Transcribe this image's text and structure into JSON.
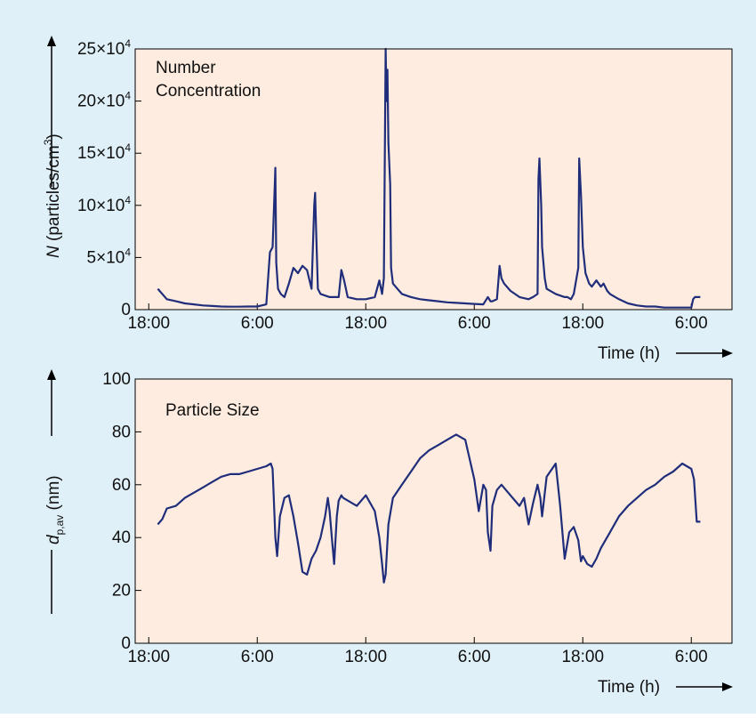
{
  "figure": {
    "background": "#dff0f8",
    "plot_background": "#fdecdf",
    "line_color": "#1f2d7b",
    "time_label": "Time (h)",
    "x_tick_labels": [
      "18:00",
      "6:00",
      "18:00",
      "6:00",
      "18:00",
      "6:00"
    ]
  },
  "chart_data": [
    {
      "type": "line",
      "annotation": "Number Concentration",
      "ylabel": {
        "italic": "N",
        "rest": " (particles/cm",
        "sup": "3",
        "close": ")"
      },
      "xlabel": "Time (h)",
      "x_unit": "hours since first 18:00 tick",
      "xlim": [
        -1.5,
        64.5
      ],
      "ylim": [
        0,
        250000
      ],
      "y_ticks": [
        {
          "value": 0,
          "base": "0",
          "exp": ""
        },
        {
          "value": 50000,
          "base": "5×10",
          "exp": "4"
        },
        {
          "value": 100000,
          "base": "10×10",
          "exp": "4"
        },
        {
          "value": 150000,
          "base": "15×10",
          "exp": "4"
        },
        {
          "value": 200000,
          "base": "20×10",
          "exp": "4"
        },
        {
          "value": 250000,
          "base": "25×10",
          "exp": "4"
        }
      ],
      "x_ticks": [
        0,
        12,
        24,
        36,
        48,
        60
      ],
      "series": [
        {
          "x": [
            1,
            2,
            3,
            4,
            5,
            6,
            7,
            8,
            9,
            10,
            11,
            12,
            13,
            13.4,
            13.7,
            14,
            14.1,
            14.3,
            14.6,
            15,
            15.5,
            16,
            16.5,
            17,
            17.5,
            18,
            18.3,
            18.4,
            18.5,
            18.7,
            19,
            20,
            21,
            21.3,
            21.6,
            22,
            23,
            24,
            25,
            25.5,
            25.8,
            26,
            26.2,
            26.3,
            26.4,
            26.5,
            26.7,
            26.8,
            27,
            27.5,
            28,
            29,
            30,
            31,
            32,
            33,
            34,
            35,
            36,
            37,
            37.5,
            37.8,
            38,
            38.5,
            38.8,
            39,
            39.3,
            40,
            41,
            42,
            42.5,
            43,
            43.1,
            43.2,
            43.4,
            43.5,
            43.8,
            44,
            45,
            46,
            46.3,
            46.7,
            47,
            47.5,
            47.6,
            47.8,
            48,
            48.3,
            48.7,
            49,
            49.5,
            50,
            50.3,
            50.7,
            51,
            52,
            53,
            54,
            55,
            56,
            57,
            58,
            59,
            60,
            60.2,
            60.4,
            61
          ],
          "y": [
            20000,
            10000,
            8000,
            6000,
            5000,
            4000,
            3500,
            3000,
            2800,
            2800,
            3000,
            3000,
            5000,
            55000,
            60000,
            136000,
            45000,
            20000,
            15000,
            12000,
            25000,
            40000,
            35000,
            42000,
            38000,
            20000,
            100000,
            112000,
            80000,
            20000,
            15000,
            12000,
            12000,
            38000,
            28000,
            12000,
            10000,
            10000,
            12000,
            28000,
            15000,
            30000,
            250000,
            200000,
            230000,
            160000,
            120000,
            40000,
            25000,
            20000,
            15000,
            12000,
            10000,
            9000,
            8000,
            7000,
            6500,
            6000,
            5500,
            5000,
            12000,
            8000,
            8000,
            10000,
            42000,
            30000,
            25000,
            18000,
            12000,
            10000,
            12000,
            15000,
            125000,
            145000,
            100000,
            60000,
            30000,
            20000,
            15000,
            12000,
            12000,
            10000,
            15000,
            40000,
            145000,
            110000,
            60000,
            35000,
            25000,
            22000,
            28000,
            22000,
            25000,
            18000,
            15000,
            10000,
            6000,
            4000,
            3000,
            3000,
            2000,
            2000,
            2000,
            2000,
            10000,
            12000,
            12000
          ]
        }
      ]
    },
    {
      "type": "line",
      "annotation": "Particle Size",
      "ylabel": {
        "italic": "d",
        "sub": "p,av",
        "rest": " (nm)"
      },
      "xlabel": "Time (h)",
      "x_unit": "hours since first 18:00 tick",
      "xlim": [
        -1.5,
        64.5
      ],
      "ylim": [
        0,
        100
      ],
      "y_ticks": [
        {
          "value": 0,
          "base": "0",
          "exp": ""
        },
        {
          "value": 20,
          "base": "20",
          "exp": ""
        },
        {
          "value": 40,
          "base": "40",
          "exp": ""
        },
        {
          "value": 60,
          "base": "60",
          "exp": ""
        },
        {
          "value": 80,
          "base": "80",
          "exp": ""
        },
        {
          "value": 100,
          "base": "100",
          "exp": ""
        }
      ],
      "x_ticks": [
        0,
        12,
        24,
        36,
        48,
        60
      ],
      "series": [
        {
          "x": [
            1,
            1.5,
            2,
            3,
            4,
            5,
            6,
            7,
            8,
            9,
            10,
            11,
            12,
            13,
            13.5,
            13.7,
            14,
            14.2,
            14.5,
            15,
            15.5,
            16,
            16.5,
            17,
            17.5,
            18,
            18.5,
            19,
            19.5,
            19.8,
            20,
            20.3,
            20.5,
            20.8,
            21,
            21.3,
            21.5,
            22,
            23,
            24,
            25,
            25.5,
            25.8,
            26,
            26.2,
            26.5,
            27,
            28,
            29,
            30,
            31,
            32,
            33,
            34,
            35,
            36,
            36.5,
            37,
            37.3,
            37.5,
            37.8,
            38,
            38.5,
            39,
            40,
            41,
            41.5,
            42,
            42.5,
            43,
            43.3,
            43.5,
            44,
            45,
            45.5,
            46,
            46.5,
            47,
            47.5,
            47.8,
            48,
            48.5,
            49,
            49.5,
            50,
            51,
            52,
            53,
            54,
            55,
            56,
            57,
            58,
            59,
            60,
            60.3,
            60.6,
            61
          ],
          "y": [
            45,
            47,
            51,
            52,
            55,
            57,
            59,
            61,
            63,
            64,
            64,
            65,
            66,
            67,
            68,
            66,
            40,
            33,
            48,
            55,
            56,
            48,
            38,
            27,
            26,
            32,
            35,
            40,
            48,
            55,
            50,
            38,
            30,
            48,
            54,
            56,
            55,
            54,
            52,
            56,
            50,
            40,
            30,
            23,
            26,
            45,
            55,
            60,
            65,
            70,
            73,
            75,
            77,
            79,
            77,
            62,
            50,
            60,
            58,
            42,
            35,
            52,
            58,
            60,
            56,
            52,
            55,
            45,
            53,
            60,
            55,
            48,
            63,
            68,
            52,
            32,
            42,
            44,
            39,
            31,
            33,
            30,
            29,
            32,
            36,
            42,
            48,
            52,
            55,
            58,
            60,
            63,
            65,
            68,
            66,
            62,
            46,
            46
          ]
        }
      ]
    }
  ]
}
